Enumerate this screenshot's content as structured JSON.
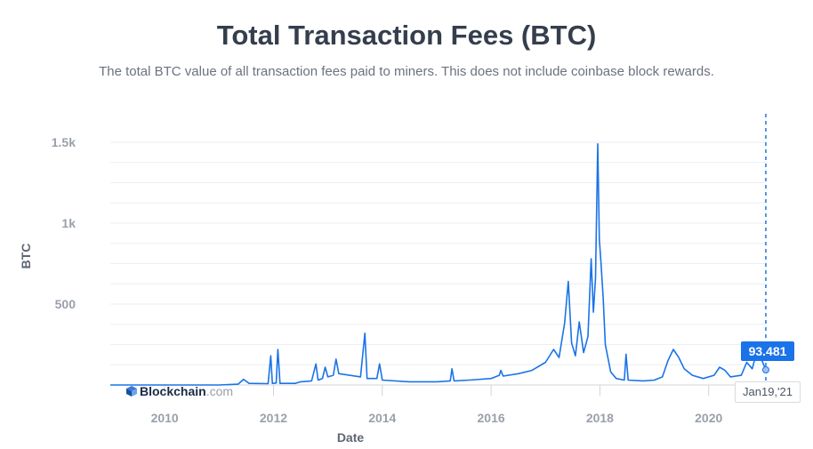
{
  "header": {
    "title": "Total Transaction Fees (BTC)",
    "subtitle": "The total BTC value of all transaction fees paid to miners. This does not include coinbase block rewards."
  },
  "brand": {
    "name": "Blockchain",
    "suffix": ".com"
  },
  "tooltip": {
    "value": "93.481",
    "date": "Jan19,'21"
  },
  "colors": {
    "line": "#1a73e8",
    "grid": "#eceef2",
    "text": "#353e4d"
  },
  "chart_data": {
    "type": "line",
    "title": "Total Transaction Fees (BTC)",
    "xlabel": "Date",
    "ylabel": "BTC",
    "x_tick_labels": [
      "2010",
      "2012",
      "2014",
      "2016",
      "2018",
      "2020"
    ],
    "y_tick_labels": [
      "500",
      "1k",
      "1.5k"
    ],
    "y_ticks": [
      500,
      1000,
      1500
    ],
    "xlim": [
      2009.0,
      2021.1
    ],
    "ylim": [
      0,
      1500
    ],
    "grid": true,
    "series": [
      {
        "points": [
          [
            2009.0,
            0
          ],
          [
            2010.0,
            0
          ],
          [
            2011.0,
            0
          ],
          [
            2011.35,
            5
          ],
          [
            2011.45,
            35
          ],
          [
            2011.55,
            10
          ],
          [
            2011.9,
            8
          ],
          [
            2011.95,
            180
          ],
          [
            2011.98,
            10
          ],
          [
            2012.05,
            12
          ],
          [
            2012.08,
            220
          ],
          [
            2012.12,
            10
          ],
          [
            2012.4,
            10
          ],
          [
            2012.5,
            20
          ],
          [
            2012.7,
            25
          ],
          [
            2012.78,
            130
          ],
          [
            2012.82,
            30
          ],
          [
            2012.9,
            40
          ],
          [
            2012.95,
            110
          ],
          [
            2013.0,
            50
          ],
          [
            2013.1,
            60
          ],
          [
            2013.15,
            160
          ],
          [
            2013.2,
            70
          ],
          [
            2013.4,
            60
          ],
          [
            2013.6,
            50
          ],
          [
            2013.68,
            320
          ],
          [
            2013.72,
            40
          ],
          [
            2013.9,
            40
          ],
          [
            2013.95,
            130
          ],
          [
            2014.0,
            30
          ],
          [
            2014.5,
            20
          ],
          [
            2015.0,
            20
          ],
          [
            2015.25,
            25
          ],
          [
            2015.28,
            100
          ],
          [
            2015.32,
            25
          ],
          [
            2015.6,
            30
          ],
          [
            2016.0,
            40
          ],
          [
            2016.15,
            60
          ],
          [
            2016.18,
            90
          ],
          [
            2016.22,
            55
          ],
          [
            2016.5,
            70
          ],
          [
            2016.75,
            90
          ],
          [
            2017.0,
            140
          ],
          [
            2017.15,
            220
          ],
          [
            2017.25,
            170
          ],
          [
            2017.35,
            380
          ],
          [
            2017.42,
            640
          ],
          [
            2017.48,
            260
          ],
          [
            2017.55,
            180
          ],
          [
            2017.62,
            390
          ],
          [
            2017.7,
            200
          ],
          [
            2017.78,
            300
          ],
          [
            2017.84,
            780
          ],
          [
            2017.88,
            450
          ],
          [
            2017.92,
            660
          ],
          [
            2017.96,
            1490
          ],
          [
            2017.99,
            900
          ],
          [
            2018.02,
            760
          ],
          [
            2018.06,
            540
          ],
          [
            2018.1,
            250
          ],
          [
            2018.2,
            80
          ],
          [
            2018.3,
            40
          ],
          [
            2018.45,
            30
          ],
          [
            2018.48,
            190
          ],
          [
            2018.52,
            30
          ],
          [
            2018.8,
            25
          ],
          [
            2019.0,
            30
          ],
          [
            2019.15,
            50
          ],
          [
            2019.25,
            150
          ],
          [
            2019.35,
            220
          ],
          [
            2019.45,
            170
          ],
          [
            2019.55,
            100
          ],
          [
            2019.7,
            60
          ],
          [
            2019.9,
            40
          ],
          [
            2020.1,
            60
          ],
          [
            2020.2,
            110
          ],
          [
            2020.3,
            90
          ],
          [
            2020.4,
            50
          ],
          [
            2020.6,
            60
          ],
          [
            2020.7,
            140
          ],
          [
            2020.8,
            100
          ],
          [
            2020.9,
            230
          ],
          [
            2020.98,
            150
          ],
          [
            2021.05,
            93.481
          ]
        ]
      }
    ],
    "hover": {
      "x": 2021.05,
      "y": 93.481
    }
  }
}
